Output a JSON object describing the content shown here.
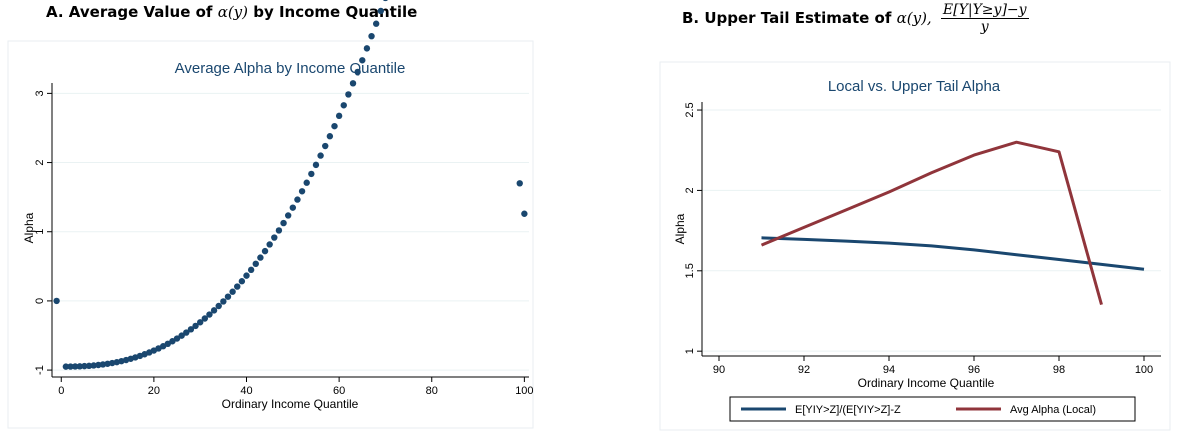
{
  "panel_a": {
    "heading_prefix": "A. Average Value of",
    "heading_math": "α(y)",
    "heading_suffix": "by Income Quantile"
  },
  "panel_b": {
    "heading_prefix": "B. Upper Tail Estimate of",
    "heading_math": "α(y),",
    "heading_frac_num": "E[Y|Y≥y]−y",
    "heading_frac_den": "y"
  },
  "chart_data": [
    {
      "type": "scatter",
      "title": "Average Alpha by Income Quantile",
      "xlabel": "Ordinary Income Quantile",
      "ylabel": "Alpha",
      "xlim": [
        -2,
        101
      ],
      "ylim": [
        -1.1,
        3.15
      ],
      "xticks": [
        0,
        20,
        40,
        60,
        80,
        100
      ],
      "yticks": [
        -1,
        0,
        1,
        2,
        3
      ],
      "ytick_labels": [
        "-1",
        "0",
        "1",
        "2",
        "3"
      ],
      "grid": true,
      "marker_color": "#1a476f",
      "extra_points": [
        [
          -1,
          0
        ],
        [
          99,
          1.7
        ],
        [
          100,
          1.26
        ]
      ],
      "series": [
        {
          "curve": "a + b*x^p",
          "x_range": [
            1,
            98
          ],
          "a": -0.95,
          "b": 0.00013,
          "p": 2.5
        }
      ]
    },
    {
      "type": "line",
      "title": "Local vs. Upper Tail Alpha",
      "xlabel": "Ordinary Income Quantile",
      "ylabel": "Alpha",
      "xlim": [
        89.6,
        100.4
      ],
      "ylim": [
        0.97,
        2.55
      ],
      "xticks": [
        90,
        92,
        94,
        96,
        98,
        100
      ],
      "yticks": [
        1,
        1.5,
        2,
        2.5
      ],
      "ytick_labels": [
        "1",
        "1.5",
        "2",
        "2.5"
      ],
      "grid": true,
      "legend_position": "bottom",
      "series": [
        {
          "name": "E[YIY>Z]/(E[YIY>Z]-Z",
          "color": "#1a476f",
          "x": [
            91,
            92,
            93,
            94,
            95,
            96,
            97,
            98,
            99,
            100
          ],
          "y": [
            1.705,
            1.695,
            1.685,
            1.672,
            1.655,
            1.63,
            1.6,
            1.57,
            1.54,
            1.51
          ]
        },
        {
          "name": "Avg Alpha (Local)",
          "color": "#90353b",
          "x": [
            91,
            92,
            93,
            94,
            95,
            96,
            97,
            98,
            99
          ],
          "y": [
            1.66,
            1.77,
            1.88,
            1.99,
            2.11,
            2.22,
            2.3,
            2.24,
            1.29
          ]
        }
      ]
    }
  ]
}
